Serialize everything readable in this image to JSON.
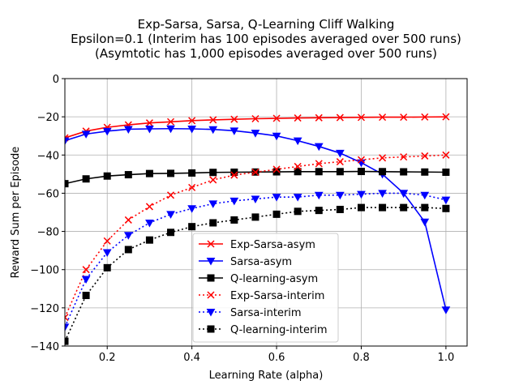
{
  "chart_data": {
    "type": "line",
    "title_lines": [
      "Exp-Sarsa, Sarsa, Q-Learning Cliff Walking",
      "Epsilon=0.1 (Interim has 100 episodes averaged over 500 runs)",
      "(Asymtotic has 1,000 episodes averaged over 500 runs)"
    ],
    "xlabel": "Learning Rate (alpha)",
    "ylabel": "Reward Sum per Episode",
    "xlim": [
      0.1,
      1.05
    ],
    "ylim": [
      -140,
      0
    ],
    "xticks": [
      0.2,
      0.4,
      0.6,
      0.8,
      1.0
    ],
    "xtick_labels": [
      "0.2",
      "0.4",
      "0.6",
      "0.8",
      "1.0"
    ],
    "yticks": [
      0,
      -20,
      -40,
      -60,
      -80,
      -100,
      -120,
      -140
    ],
    "ytick_labels": [
      "0",
      "−20",
      "−40",
      "−60",
      "−80",
      "−100",
      "−120",
      "−140"
    ],
    "grid": true,
    "legend_position": "lower center",
    "x": [
      0.1,
      0.15,
      0.2,
      0.25,
      0.3,
      0.35,
      0.4,
      0.45,
      0.5,
      0.55,
      0.6,
      0.65,
      0.7,
      0.75,
      0.8,
      0.85,
      0.9,
      0.95,
      1.0
    ],
    "series": [
      {
        "name": "Exp-Sarsa-asym",
        "color": "#ff0000",
        "marker": "x",
        "dash": "solid",
        "values": [
          -31,
          -27.5,
          -25.5,
          -24.2,
          -23.2,
          -22.6,
          -22.0,
          -21.6,
          -21.3,
          -21.0,
          -20.8,
          -20.6,
          -20.5,
          -20.4,
          -20.3,
          -20.2,
          -20.2,
          -20.1,
          -20.0
        ]
      },
      {
        "name": "Sarsa-asym",
        "color": "#0000ff",
        "marker": "triangle-down",
        "dash": "solid",
        "values": [
          -32.5,
          -29,
          -27.5,
          -26.5,
          -26.3,
          -26.2,
          -26.3,
          -26.6,
          -27.3,
          -28.5,
          -30,
          -32.5,
          -35.5,
          -39,
          -44,
          -50,
          -60,
          -75,
          -121
        ]
      },
      {
        "name": "Q-learning-asym",
        "color": "#000000",
        "marker": "square",
        "dash": "solid",
        "values": [
          -55,
          -52.5,
          -51,
          -50.3,
          -49.7,
          -49.6,
          -49.4,
          -49.1,
          -49.0,
          -48.9,
          -48.8,
          -48.7,
          -48.7,
          -48.7,
          -48.6,
          -48.7,
          -48.8,
          -48.9,
          -49.0
        ]
      },
      {
        "name": "Exp-Sarsa-interim",
        "color": "#ff0000",
        "marker": "x",
        "dash": "dotted",
        "values": [
          -125,
          -100,
          -85,
          -74,
          -67,
          -61,
          -57,
          -53,
          -50.5,
          -49,
          -47.5,
          -46,
          -44.5,
          -43.5,
          -42.5,
          -41.5,
          -41,
          -40.5,
          -40
        ]
      },
      {
        "name": "Sarsa-interim",
        "color": "#0000ff",
        "marker": "triangle-down",
        "dash": "dotted",
        "values": [
          -130,
          -105,
          -91,
          -82,
          -75.5,
          -71,
          -68,
          -65.5,
          -64,
          -63,
          -62,
          -62,
          -61,
          -61,
          -60.5,
          -60,
          -60,
          -61,
          -63.5
        ]
      },
      {
        "name": "Q-learning-interim",
        "color": "#000000",
        "marker": "square",
        "dash": "dotted",
        "values": [
          -137.5,
          -113.5,
          -99,
          -89.5,
          -84.5,
          -80.5,
          -77.5,
          -75.5,
          -74,
          -72.5,
          -71,
          -69.5,
          -69,
          -68.5,
          -67.5,
          -67.5,
          -67.5,
          -67.5,
          -68
        ]
      }
    ]
  }
}
